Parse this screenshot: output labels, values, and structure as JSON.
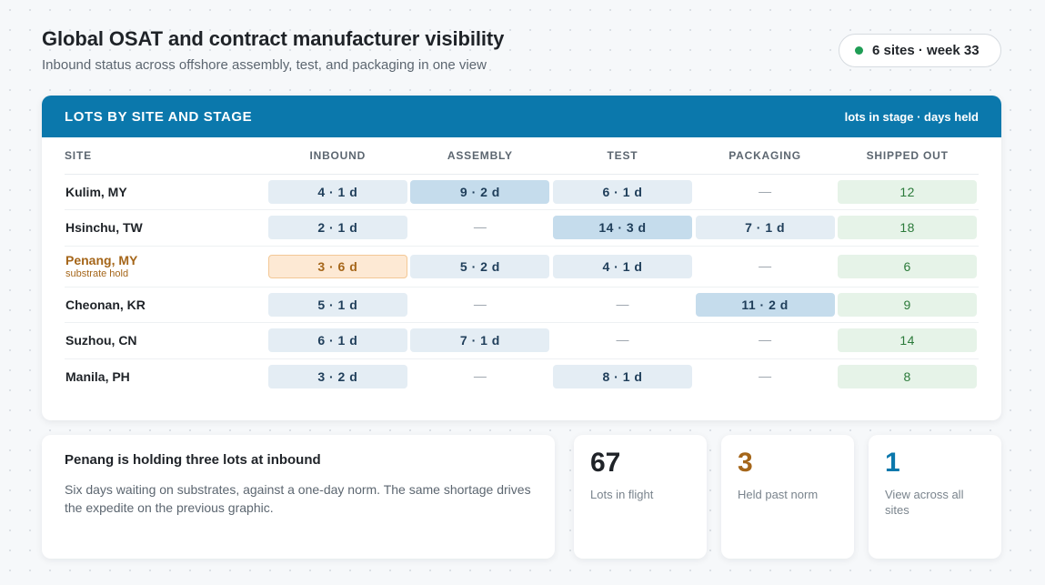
{
  "header": {
    "title": "Global OSAT and contract manufacturer visibility",
    "subtitle": "Inbound status across offshore assembly, test, and packaging in one view",
    "status": "6 sites · week 33"
  },
  "table": {
    "title": "LOTS BY SITE AND STAGE",
    "legend": "lots in stage · days held",
    "columns": [
      "SITE",
      "INBOUND",
      "ASSEMBLY",
      "TEST",
      "PACKAGING",
      "SHIPPED OUT"
    ],
    "rows": [
      {
        "site": "Kulim, MY",
        "note": "",
        "inbound": "4 · 1 d",
        "assembly": "9 · 2 d",
        "test": "6 · 1 d",
        "packaging": "—",
        "shipped": "12"
      },
      {
        "site": "Hsinchu, TW",
        "note": "",
        "inbound": "2 · 1 d",
        "assembly": "—",
        "test": "14 · 3 d",
        "packaging": "7 · 1 d",
        "shipped": "18"
      },
      {
        "site": "Penang, MY",
        "note": "substrate hold",
        "inbound": "3 · 6 d",
        "assembly": "5 · 2 d",
        "test": "4 · 1 d",
        "packaging": "—",
        "shipped": "6"
      },
      {
        "site": "Cheonan, KR",
        "note": "",
        "inbound": "5 · 1 d",
        "assembly": "—",
        "test": "—",
        "packaging": "11 · 2 d",
        "shipped": "9"
      },
      {
        "site": "Suzhou, CN",
        "note": "",
        "inbound": "6 · 1 d",
        "assembly": "7 · 1 d",
        "test": "—",
        "packaging": "—",
        "shipped": "14"
      },
      {
        "site": "Manila, PH",
        "note": "",
        "inbound": "3 · 2 d",
        "assembly": "—",
        "test": "8 · 1 d",
        "packaging": "—",
        "shipped": "8"
      }
    ]
  },
  "note": {
    "title": "Penang is holding three lots at inbound",
    "body": "Six days waiting on substrates, against a one-day norm. The same shortage drives the expedite on the previous graphic."
  },
  "stats": [
    {
      "value": "67",
      "label": "Lots in flight",
      "color": "#1f2328"
    },
    {
      "value": "3",
      "label": "Held past norm",
      "color": "#a5661a"
    },
    {
      "value": "1",
      "label": "View across all sites",
      "color": "#0b78ac"
    }
  ],
  "colors": {
    "header_bar": "#0b78ac",
    "status_dot": "#1f9d55",
    "warning": "#a5661a",
    "shipped": "#2b7a3a"
  }
}
